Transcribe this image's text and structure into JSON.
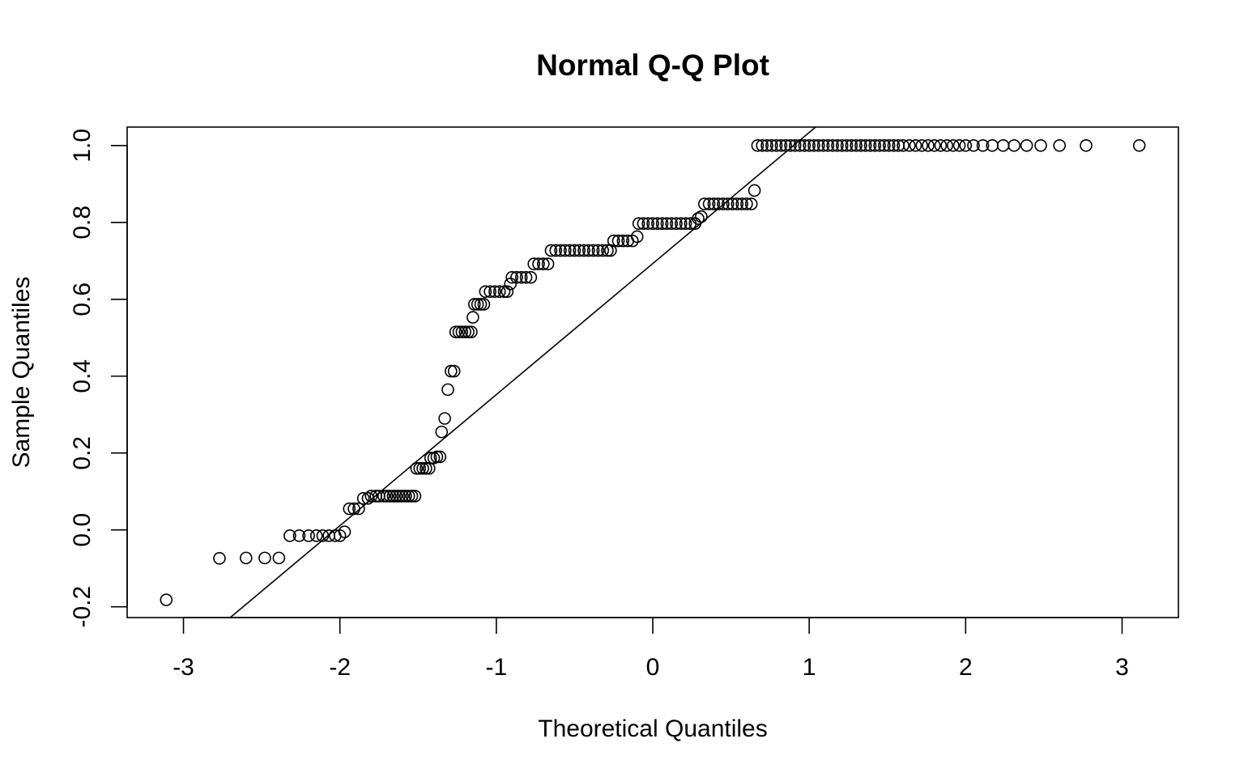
{
  "chart_data": {
    "type": "scatter",
    "title": "Normal Q-Q Plot",
    "xlabel": "Theoretical Quantiles",
    "ylabel": "Sample Quantiles",
    "xlim": [
      -3.36,
      3.36
    ],
    "ylim": [
      -0.228,
      1.048
    ],
    "x_ticks": [
      -3,
      -2,
      -1,
      0,
      1,
      2,
      3
    ],
    "x_tick_labels": [
      "-3",
      "-2",
      "-1",
      "0",
      "1",
      "2",
      "3"
    ],
    "y_ticks": [
      -0.2,
      0.0,
      0.2,
      0.4,
      0.6,
      0.8,
      1.0
    ],
    "y_tick_labels": [
      "-0.2",
      "0.0",
      "0.2",
      "0.4",
      "0.6",
      "0.8",
      "1.0"
    ],
    "grid": false,
    "point_style": "open-circle",
    "qq_line": {
      "slope": 0.341,
      "intercept": 0.693
    },
    "points": [
      [
        -3.11,
        -0.182
      ],
      [
        -2.77,
        -0.074
      ],
      [
        -2.6,
        -0.073
      ],
      [
        -2.48,
        -0.073
      ],
      [
        -2.39,
        -0.073
      ],
      [
        -2.32,
        -0.015
      ],
      [
        -2.26,
        -0.015
      ],
      [
        -2.2,
        -0.015
      ],
      [
        -2.15,
        -0.015
      ],
      [
        -2.11,
        -0.015
      ],
      [
        -2.07,
        -0.015
      ],
      [
        -2.03,
        -0.015
      ],
      [
        -2.0,
        -0.015
      ],
      [
        -1.97,
        -0.005
      ],
      [
        -1.94,
        0.055
      ],
      [
        -1.91,
        0.055
      ],
      [
        -1.88,
        0.055
      ],
      [
        -1.85,
        0.082
      ],
      [
        -1.82,
        0.082
      ],
      [
        -1.8,
        0.088
      ],
      [
        -1.77,
        0.088
      ],
      [
        -1.75,
        0.088
      ],
      [
        -1.72,
        0.088
      ],
      [
        -1.7,
        0.088
      ],
      [
        -1.68,
        0.088
      ],
      [
        -1.66,
        0.088
      ],
      [
        -1.64,
        0.088
      ],
      [
        -1.62,
        0.088
      ],
      [
        -1.6,
        0.088
      ],
      [
        -1.58,
        0.088
      ],
      [
        -1.56,
        0.088
      ],
      [
        -1.54,
        0.088
      ],
      [
        -1.52,
        0.088
      ],
      [
        -1.51,
        0.16
      ],
      [
        -1.49,
        0.16
      ],
      [
        -1.47,
        0.16
      ],
      [
        -1.45,
        0.16
      ],
      [
        -1.43,
        0.16
      ],
      [
        -1.42,
        0.187
      ],
      [
        -1.4,
        0.187
      ],
      [
        -1.38,
        0.19
      ],
      [
        -1.36,
        0.19
      ],
      [
        -1.35,
        0.255
      ],
      [
        -1.33,
        0.29
      ],
      [
        -1.31,
        0.365
      ],
      [
        -1.29,
        0.413
      ],
      [
        -1.27,
        0.413
      ],
      [
        -1.26,
        0.515
      ],
      [
        -1.24,
        0.515
      ],
      [
        -1.22,
        0.515
      ],
      [
        -1.2,
        0.515
      ],
      [
        -1.18,
        0.515
      ],
      [
        -1.16,
        0.515
      ],
      [
        -1.15,
        0.553
      ],
      [
        -1.14,
        0.587
      ],
      [
        -1.12,
        0.587
      ],
      [
        -1.1,
        0.587
      ],
      [
        -1.08,
        0.587
      ],
      [
        -1.07,
        0.62
      ],
      [
        -1.04,
        0.62
      ],
      [
        -1.01,
        0.62
      ],
      [
        -0.98,
        0.62
      ],
      [
        -0.95,
        0.62
      ],
      [
        -0.93,
        0.62
      ],
      [
        -0.91,
        0.64
      ],
      [
        -0.9,
        0.657
      ],
      [
        -0.87,
        0.657
      ],
      [
        -0.84,
        0.657
      ],
      [
        -0.81,
        0.657
      ],
      [
        -0.78,
        0.657
      ],
      [
        -0.76,
        0.692
      ],
      [
        -0.73,
        0.692
      ],
      [
        -0.7,
        0.692
      ],
      [
        -0.67,
        0.692
      ],
      [
        -0.65,
        0.727
      ],
      [
        -0.62,
        0.727
      ],
      [
        -0.59,
        0.727
      ],
      [
        -0.56,
        0.727
      ],
      [
        -0.53,
        0.727
      ],
      [
        -0.5,
        0.727
      ],
      [
        -0.47,
        0.727
      ],
      [
        -0.44,
        0.727
      ],
      [
        -0.41,
        0.727
      ],
      [
        -0.38,
        0.727
      ],
      [
        -0.35,
        0.727
      ],
      [
        -0.32,
        0.727
      ],
      [
        -0.29,
        0.727
      ],
      [
        -0.27,
        0.727
      ],
      [
        -0.25,
        0.752
      ],
      [
        -0.22,
        0.752
      ],
      [
        -0.19,
        0.752
      ],
      [
        -0.16,
        0.752
      ],
      [
        -0.13,
        0.752
      ],
      [
        -0.1,
        0.763
      ],
      [
        -0.09,
        0.797
      ],
      [
        -0.06,
        0.797
      ],
      [
        -0.03,
        0.797
      ],
      [
        0.0,
        0.797
      ],
      [
        0.03,
        0.797
      ],
      [
        0.06,
        0.797
      ],
      [
        0.09,
        0.797
      ],
      [
        0.12,
        0.797
      ],
      [
        0.15,
        0.797
      ],
      [
        0.18,
        0.797
      ],
      [
        0.21,
        0.797
      ],
      [
        0.24,
        0.797
      ],
      [
        0.27,
        0.797
      ],
      [
        0.29,
        0.81
      ],
      [
        0.31,
        0.815
      ],
      [
        0.33,
        0.848
      ],
      [
        0.36,
        0.848
      ],
      [
        0.39,
        0.848
      ],
      [
        0.42,
        0.848
      ],
      [
        0.45,
        0.848
      ],
      [
        0.48,
        0.848
      ],
      [
        0.51,
        0.848
      ],
      [
        0.54,
        0.848
      ],
      [
        0.57,
        0.848
      ],
      [
        0.6,
        0.848
      ],
      [
        0.63,
        0.848
      ],
      [
        0.65,
        0.883
      ],
      [
        0.67,
        1.0
      ],
      [
        0.7,
        1.0
      ],
      [
        0.73,
        1.0
      ],
      [
        0.76,
        1.0
      ],
      [
        0.79,
        1.0
      ],
      [
        0.82,
        1.0
      ],
      [
        0.85,
        1.0
      ],
      [
        0.88,
        1.0
      ],
      [
        0.91,
        1.0
      ],
      [
        0.94,
        1.0
      ],
      [
        0.97,
        1.0
      ],
      [
        1.0,
        1.0
      ],
      [
        1.03,
        1.0
      ],
      [
        1.06,
        1.0
      ],
      [
        1.09,
        1.0
      ],
      [
        1.12,
        1.0
      ],
      [
        1.15,
        1.0
      ],
      [
        1.18,
        1.0
      ],
      [
        1.21,
        1.0
      ],
      [
        1.24,
        1.0
      ],
      [
        1.27,
        1.0
      ],
      [
        1.3,
        1.0
      ],
      [
        1.33,
        1.0
      ],
      [
        1.36,
        1.0
      ],
      [
        1.39,
        1.0
      ],
      [
        1.42,
        1.0
      ],
      [
        1.45,
        1.0
      ],
      [
        1.48,
        1.0
      ],
      [
        1.51,
        1.0
      ],
      [
        1.54,
        1.0
      ],
      [
        1.57,
        1.0
      ],
      [
        1.6,
        1.0
      ],
      [
        1.64,
        1.0
      ],
      [
        1.68,
        1.0
      ],
      [
        1.72,
        1.0
      ],
      [
        1.76,
        1.0
      ],
      [
        1.8,
        1.0
      ],
      [
        1.84,
        1.0
      ],
      [
        1.88,
        1.0
      ],
      [
        1.92,
        1.0
      ],
      [
        1.96,
        1.0
      ],
      [
        2.0,
        1.0
      ],
      [
        2.05,
        1.0
      ],
      [
        2.11,
        1.0
      ],
      [
        2.17,
        1.0
      ],
      [
        2.24,
        1.0
      ],
      [
        2.31,
        1.0
      ],
      [
        2.39,
        1.0
      ],
      [
        2.48,
        1.0
      ],
      [
        2.6,
        1.0
      ],
      [
        2.77,
        1.0
      ],
      [
        3.11,
        1.0
      ]
    ]
  }
}
